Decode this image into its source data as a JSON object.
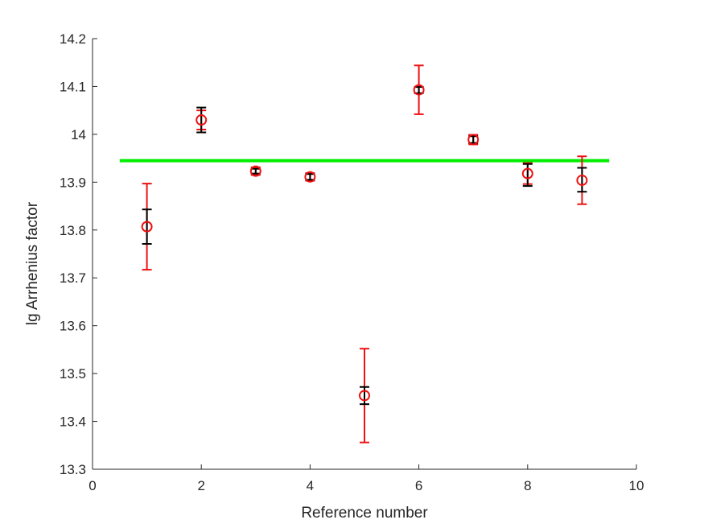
{
  "chart_data": {
    "type": "scatter",
    "title": "",
    "xlabel": "Reference number",
    "ylabel": "lg Arrhenius factor",
    "xlim": [
      0,
      10
    ],
    "ylim": [
      13.3,
      14.2
    ],
    "xticks": [
      0,
      2,
      4,
      6,
      8,
      10
    ],
    "xtick_labels": [
      "0",
      "2",
      "4",
      "6",
      "8",
      "10"
    ],
    "yticks": [
      13.3,
      13.4,
      13.5,
      13.6,
      13.7,
      13.8,
      13.9,
      14,
      14.1,
      14.2
    ],
    "ytick_labels": [
      "13.3",
      "13.4",
      "13.5",
      "13.6",
      "13.7",
      "13.8",
      "13.9",
      "14",
      "14.1",
      "14.2"
    ],
    "grid": false,
    "reference_line": {
      "y": 13.945,
      "x_from": 0.5,
      "x_to": 9.5,
      "color": "#00ee00"
    },
    "series": [
      {
        "marker": "circle",
        "color": "#ee1111",
        "points": [
          {
            "x": 1,
            "y": 13.807,
            "low": 13.717,
            "high": 13.897
          },
          {
            "x": 2,
            "y": 14.03,
            "low": 14.01,
            "high": 14.05
          },
          {
            "x": 3,
            "y": 13.923,
            "low": 13.915,
            "high": 13.931
          },
          {
            "x": 4,
            "y": 13.911,
            "low": 13.903,
            "high": 13.919
          },
          {
            "x": 5,
            "y": 13.454,
            "low": 13.356,
            "high": 13.552
          },
          {
            "x": 6,
            "y": 14.093,
            "low": 14.042,
            "high": 14.144
          },
          {
            "x": 7,
            "y": 13.989,
            "low": 13.979,
            "high": 13.999
          },
          {
            "x": 8,
            "y": 13.918,
            "low": 13.896,
            "high": 13.94
          },
          {
            "x": 9,
            "y": 13.904,
            "low": 13.854,
            "high": 13.954
          }
        ]
      },
      {
        "marker": "errorbar",
        "color": "#000000",
        "points": [
          {
            "x": 1,
            "low": 13.771,
            "high": 13.843
          },
          {
            "x": 2,
            "low": 14.004,
            "high": 14.056
          },
          {
            "x": 3,
            "low": 13.918,
            "high": 13.928
          },
          {
            "x": 4,
            "low": 13.905,
            "high": 13.917
          },
          {
            "x": 5,
            "low": 13.436,
            "high": 13.472
          },
          {
            "x": 6,
            "low": 14.086,
            "high": 14.099
          },
          {
            "x": 7,
            "low": 13.982,
            "high": 13.996
          },
          {
            "x": 8,
            "low": 13.892,
            "high": 13.938
          },
          {
            "x": 9,
            "low": 13.88,
            "high": 13.93
          }
        ]
      }
    ]
  }
}
